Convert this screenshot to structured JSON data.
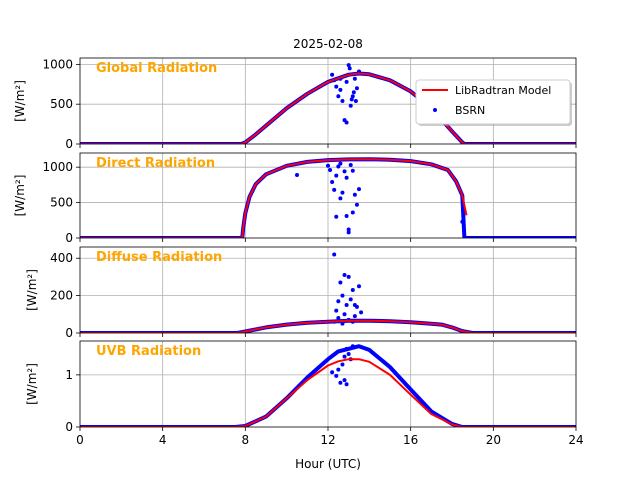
{
  "figure": {
    "title": "2025-02-08",
    "xlabel": "Hour (UTC)",
    "x_ticks": [
      0,
      4,
      8,
      12,
      16,
      20,
      24
    ],
    "xlim": [
      0,
      24
    ],
    "legend": {
      "placement": "upper-right of first panel",
      "entries": [
        {
          "label": "LibRadtran Model",
          "color": "#ff0000",
          "style": "line"
        },
        {
          "label": "BSRN",
          "color": "#0000ff",
          "style": "dots"
        }
      ]
    },
    "colors": {
      "model": "#ff0000",
      "measurement": "#0000ff",
      "panel_label": "#ffa500",
      "grid": "#b0b0b0"
    }
  },
  "chart_data": [
    {
      "type": "line",
      "panel_label": "Global Radiation",
      "ylabel": "[W/m²]",
      "ylim": [
        0,
        1080
      ],
      "y_ticks": [
        0,
        500,
        1000
      ],
      "grid": true,
      "series": [
        {
          "name": "LibRadtran Model",
          "x": [
            0,
            7.8,
            8.0,
            8.5,
            9,
            10,
            11,
            12,
            13,
            13.5,
            14,
            15,
            16,
            17,
            18,
            18.5,
            18.6,
            24
          ],
          "y": [
            0,
            0,
            20,
            120,
            230,
            450,
            630,
            780,
            870,
            885,
            875,
            800,
            660,
            450,
            160,
            20,
            0,
            0
          ]
        },
        {
          "name": "BSRN",
          "x": [
            0,
            7.8,
            8.0,
            8.5,
            9,
            10,
            11,
            12,
            13,
            13.5,
            14,
            15,
            16,
            17,
            18,
            18.5,
            18.6,
            24
          ],
          "y": [
            0,
            0,
            20,
            120,
            230,
            450,
            630,
            780,
            870,
            885,
            875,
            800,
            660,
            450,
            160,
            20,
            0,
            0
          ],
          "scatter": [
            [
              12.3,
              800
            ],
            [
              12.4,
              720
            ],
            [
              12.5,
              600
            ],
            [
              12.6,
              680
            ],
            [
              12.7,
              540
            ],
            [
              12.8,
              300
            ],
            [
              12.9,
              270
            ],
            [
              13.0,
              990
            ],
            [
              13.05,
              950
            ],
            [
              13.1,
              480
            ],
            [
              13.15,
              560
            ],
            [
              13.2,
              600
            ],
            [
              13.25,
              650
            ],
            [
              13.3,
              820
            ],
            [
              13.35,
              540
            ],
            [
              13.4,
              700
            ],
            [
              12.2,
              870
            ],
            [
              12.6,
              820
            ],
            [
              13.5,
              910
            ],
            [
              12.9,
              780
            ]
          ]
        }
      ]
    },
    {
      "type": "line",
      "panel_label": "Direct Radiation",
      "ylabel": "[W/m²]",
      "ylim": [
        0,
        1200
      ],
      "y_ticks": [
        0,
        500,
        1000
      ],
      "grid": true,
      "series": [
        {
          "name": "LibRadtran Model",
          "x": [
            0,
            7.85,
            7.9,
            8.0,
            8.2,
            8.5,
            9,
            10,
            11,
            12,
            13,
            14,
            15,
            16,
            17,
            17.8,
            18.2,
            18.5,
            18.7
          ],
          "y": [
            0,
            0,
            150,
            350,
            580,
            760,
            900,
            1020,
            1075,
            1100,
            1110,
            1112,
            1105,
            1085,
            1040,
            960,
            800,
            600,
            320
          ]
        },
        {
          "name": "BSRN",
          "x": [
            0,
            7.85,
            7.9,
            8.0,
            8.2,
            8.5,
            9,
            10,
            11,
            12,
            13,
            14,
            15,
            16,
            17,
            17.8,
            18.2,
            18.5,
            18.6,
            24
          ],
          "y": [
            0,
            0,
            150,
            350,
            580,
            760,
            900,
            1020,
            1075,
            1100,
            1110,
            1112,
            1105,
            1085,
            1040,
            960,
            800,
            600,
            0,
            0
          ],
          "scatter": [
            [
              10.5,
              890
            ],
            [
              12.0,
              1020
            ],
            [
              12.1,
              960
            ],
            [
              12.2,
              790
            ],
            [
              12.3,
              680
            ],
            [
              12.4,
              880
            ],
            [
              12.5,
              1010
            ],
            [
              12.6,
              560
            ],
            [
              12.7,
              640
            ],
            [
              12.8,
              940
            ],
            [
              12.9,
              310
            ],
            [
              13.0,
              120
            ],
            [
              13.0,
              80
            ],
            [
              13.1,
              1030
            ],
            [
              13.2,
              950
            ],
            [
              13.3,
              610
            ],
            [
              13.4,
              470
            ],
            [
              13.5,
              690
            ],
            [
              12.6,
              1050
            ],
            [
              13.2,
              360
            ],
            [
              12.9,
              850
            ],
            [
              18.5,
              230
            ],
            [
              12.4,
              300
            ]
          ]
        }
      ]
    },
    {
      "type": "line",
      "panel_label": "Diffuse Radiation",
      "ylabel": "[W/m²]",
      "ylim": [
        0,
        460
      ],
      "y_ticks": [
        0,
        200,
        400
      ],
      "grid": true,
      "series": [
        {
          "name": "LibRadtran Model",
          "x": [
            0,
            7.6,
            8,
            9,
            10,
            11,
            12,
            13,
            14,
            15,
            16,
            17,
            17.5,
            18,
            18.5,
            19,
            24
          ],
          "y": [
            0,
            0,
            8,
            30,
            45,
            55,
            60,
            65,
            66,
            63,
            58,
            50,
            45,
            30,
            10,
            0,
            0
          ]
        },
        {
          "name": "BSRN",
          "x": [
            0,
            7.6,
            8,
            9,
            10,
            11,
            12,
            13,
            14,
            15,
            16,
            17,
            17.5,
            18,
            18.5,
            19,
            24
          ],
          "y": [
            0,
            0,
            8,
            30,
            45,
            55,
            60,
            65,
            66,
            63,
            58,
            50,
            45,
            30,
            10,
            0,
            0
          ],
          "scatter": [
            [
              12.3,
              60
            ],
            [
              12.4,
              120
            ],
            [
              12.5,
              80
            ],
            [
              12.6,
              270
            ],
            [
              12.7,
              200
            ],
            [
              12.8,
              310
            ],
            [
              12.9,
              150
            ],
            [
              12.3,
              420
            ],
            [
              13.0,
              300
            ],
            [
              13.1,
              180
            ],
            [
              13.2,
              230
            ],
            [
              13.3,
              90
            ],
            [
              13.4,
              140
            ],
            [
              13.5,
              250
            ],
            [
              13.6,
              110
            ],
            [
              12.8,
              100
            ],
            [
              13.0,
              70
            ],
            [
              12.5,
              170
            ],
            [
              13.3,
              150
            ],
            [
              12.7,
              50
            ],
            [
              13.2,
              60
            ]
          ]
        }
      ]
    },
    {
      "type": "line",
      "panel_label": "UVB Radiation",
      "ylabel": "[W/m²]",
      "ylim": [
        0,
        1.65
      ],
      "y_ticks": [
        0,
        1
      ],
      "grid": true,
      "series": [
        {
          "name": "LibRadtran Model",
          "x": [
            0,
            7.5,
            8,
            9,
            10,
            11,
            12,
            12.5,
            13,
            13.5,
            14,
            15,
            16,
            17,
            18,
            18.5,
            24
          ],
          "y": [
            0,
            0,
            0.02,
            0.2,
            0.55,
            0.9,
            1.18,
            1.26,
            1.3,
            1.3,
            1.25,
            1.0,
            0.62,
            0.25,
            0.05,
            0,
            0
          ]
        },
        {
          "name": "BSRN",
          "x": [
            0,
            7.5,
            8,
            9,
            10,
            11,
            12,
            12.5,
            13,
            13.5,
            14,
            15,
            16,
            17,
            18,
            18.5,
            24
          ],
          "y": [
            0,
            0,
            0.02,
            0.2,
            0.55,
            0.95,
            1.3,
            1.45,
            1.5,
            1.55,
            1.48,
            1.15,
            0.72,
            0.3,
            0.06,
            0,
            0
          ],
          "scatter": [
            [
              12.2,
              1.05
            ],
            [
              12.4,
              0.98
            ],
            [
              12.6,
              0.85
            ],
            [
              12.7,
              1.2
            ],
            [
              12.8,
              1.35
            ],
            [
              12.9,
              1.5
            ],
            [
              13.0,
              1.4
            ],
            [
              13.1,
              1.3
            ],
            [
              12.8,
              0.9
            ],
            [
              13.2,
              1.55
            ],
            [
              12.5,
              1.1
            ],
            [
              12.9,
              0.82
            ]
          ]
        }
      ]
    }
  ]
}
